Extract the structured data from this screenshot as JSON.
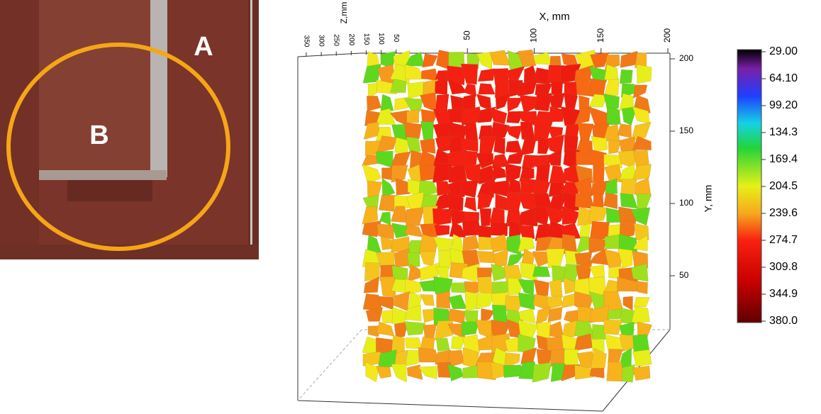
{
  "photo": {
    "labels": [
      "A",
      "B"
    ]
  },
  "plot": {
    "x_axis": {
      "label": "X, mm",
      "ticks": [
        50,
        100,
        150,
        200
      ]
    },
    "y_axis": {
      "label": "Y, mm",
      "ticks": [
        50,
        100,
        150,
        200
      ]
    },
    "z_axis": {
      "label": "Z,mm",
      "ticks": [
        50,
        100,
        150,
        200,
        250,
        300,
        350
      ]
    }
  },
  "colorbar": {
    "labels": [
      "29.00",
      "64.10",
      "99.20",
      "134.3",
      "169.4",
      "204.5",
      "239.6",
      "274.7",
      "309.8",
      "344.9",
      "380.0"
    ]
  }
}
